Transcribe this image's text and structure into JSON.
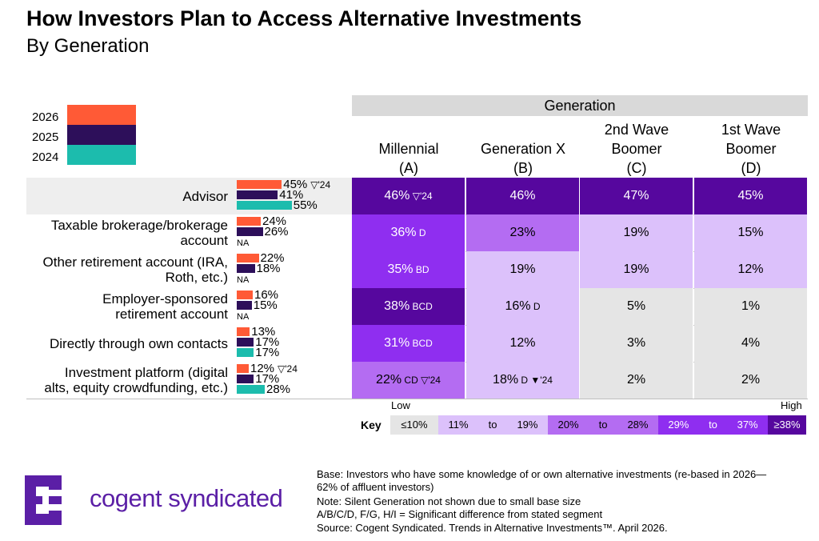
{
  "title": "How Investors Plan to Access Alternative Investments",
  "subtitle": "By Generation",
  "legend": [
    {
      "label": "2026",
      "color": "#ff5a36"
    },
    {
      "label": "2025",
      "color": "#2d0f5a"
    },
    {
      "label": "2024",
      "color": "#1cbcad"
    }
  ],
  "table_header": "Generation",
  "columns": [
    {
      "line1": "",
      "line2": "Millennial",
      "code": "(A)"
    },
    {
      "line1": "",
      "line2": "Generation X",
      "code": "(B)"
    },
    {
      "line1": "2nd Wave",
      "line2": "Boomer",
      "code": "(C)"
    },
    {
      "line1": "1st Wave",
      "line2": "Boomer",
      "code": "(D)"
    }
  ],
  "chart_data": {
    "type": "table",
    "rows": [
      {
        "label_lines": [
          "Advisor"
        ],
        "bars": [
          {
            "year": "2026",
            "value": 45,
            "text": "45%",
            "note": "▽'24"
          },
          {
            "year": "2025",
            "value": 41,
            "text": "41%"
          },
          {
            "year": "2024",
            "value": 55,
            "text": "55%"
          }
        ],
        "cells": [
          {
            "value": 46,
            "text": "46%",
            "sig": "",
            "trend": "▽'24"
          },
          {
            "value": 46,
            "text": "46%",
            "sig": "",
            "trend": ""
          },
          {
            "value": 47,
            "text": "47%",
            "sig": "",
            "trend": ""
          },
          {
            "value": 45,
            "text": "45%",
            "sig": "",
            "trend": ""
          }
        ]
      },
      {
        "label_lines": [
          "Taxable brokerage/brokerage",
          "account"
        ],
        "bars": [
          {
            "year": "2026",
            "value": 24,
            "text": "24%"
          },
          {
            "year": "2025",
            "value": 26,
            "text": "26%"
          },
          {
            "year": "2024",
            "value": null,
            "text": "NA"
          }
        ],
        "cells": [
          {
            "value": 36,
            "text": "36%",
            "sig": "D",
            "trend": ""
          },
          {
            "value": 23,
            "text": "23%",
            "sig": "",
            "trend": ""
          },
          {
            "value": 19,
            "text": "19%",
            "sig": "",
            "trend": ""
          },
          {
            "value": 15,
            "text": "15%",
            "sig": "",
            "trend": ""
          }
        ]
      },
      {
        "label_lines": [
          "Other retirement account (IRA,",
          "Roth, etc.)"
        ],
        "bars": [
          {
            "year": "2026",
            "value": 22,
            "text": "22%"
          },
          {
            "year": "2025",
            "value": 18,
            "text": "18%"
          },
          {
            "year": "2024",
            "value": null,
            "text": "NA"
          }
        ],
        "cells": [
          {
            "value": 35,
            "text": "35%",
            "sig": "BD",
            "trend": ""
          },
          {
            "value": 19,
            "text": "19%",
            "sig": "",
            "trend": ""
          },
          {
            "value": 19,
            "text": "19%",
            "sig": "",
            "trend": ""
          },
          {
            "value": 12,
            "text": "12%",
            "sig": "",
            "trend": ""
          }
        ]
      },
      {
        "label_lines": [
          "Employer-sponsored",
          "retirement account"
        ],
        "bars": [
          {
            "year": "2026",
            "value": 16,
            "text": "16%"
          },
          {
            "year": "2025",
            "value": 15,
            "text": "15%"
          },
          {
            "year": "2024",
            "value": null,
            "text": "NA"
          }
        ],
        "cells": [
          {
            "value": 38,
            "text": "38%",
            "sig": "BCD",
            "trend": ""
          },
          {
            "value": 16,
            "text": "16%",
            "sig": "D",
            "trend": ""
          },
          {
            "value": 5,
            "text": "5%",
            "sig": "",
            "trend": ""
          },
          {
            "value": 1,
            "text": "1%",
            "sig": "",
            "trend": ""
          }
        ]
      },
      {
        "label_lines": [
          "Directly through own contacts"
        ],
        "bars": [
          {
            "year": "2026",
            "value": 13,
            "text": "13%"
          },
          {
            "year": "2025",
            "value": 17,
            "text": "17%"
          },
          {
            "year": "2024",
            "value": 17,
            "text": "17%"
          }
        ],
        "cells": [
          {
            "value": 31,
            "text": "31%",
            "sig": "BCD",
            "trend": ""
          },
          {
            "value": 12,
            "text": "12%",
            "sig": "",
            "trend": ""
          },
          {
            "value": 3,
            "text": "3%",
            "sig": "",
            "trend": ""
          },
          {
            "value": 4,
            "text": "4%",
            "sig": "",
            "trend": ""
          }
        ]
      },
      {
        "label_lines": [
          "Investment platform (digital",
          "alts, equity crowdfunding, etc.)"
        ],
        "bars": [
          {
            "year": "2026",
            "value": 12,
            "text": "12%",
            "note": "▽'24"
          },
          {
            "year": "2025",
            "value": 17,
            "text": "17%"
          },
          {
            "year": "2024",
            "value": 28,
            "text": "28%"
          }
        ],
        "cells": [
          {
            "value": 22,
            "text": "22%",
            "sig": "CD",
            "trend": "▽'24"
          },
          {
            "value": 18,
            "text": "18%",
            "sig": "D",
            "trend": "▼'24"
          },
          {
            "value": 2,
            "text": "2%",
            "sig": "",
            "trend": ""
          },
          {
            "value": 2,
            "text": "2%",
            "sig": "",
            "trend": ""
          }
        ]
      }
    ]
  },
  "key": {
    "label": "Key",
    "low": "Low",
    "high": "High",
    "ranges": [
      {
        "text": "≤10%",
        "from": "",
        "to": "",
        "bg": "#e5e5e5",
        "fg": "#000000"
      },
      {
        "text": "",
        "from": "11%",
        "to": "19%",
        "bg": "#dcc1fb",
        "fg": "#000000"
      },
      {
        "text": "",
        "from": "20%",
        "to": "28%",
        "bg": "#b46cf2",
        "fg": "#000000"
      },
      {
        "text": "",
        "from": "29%",
        "to": "37%",
        "bg": "#8f2ef0",
        "fg": "#ffffff"
      },
      {
        "text": "≥38%",
        "from": "",
        "to": "",
        "bg": "#56079e",
        "fg": "#ffffff"
      }
    ],
    "range_word": "to"
  },
  "brand": {
    "name": "cogent syndicated",
    "color": "#5b1fa6"
  },
  "footnotes": [
    "Base: Investors who have some knowledge of or own alternative investments (re-based in 2026—",
    "62% of affluent investors)",
    "Note: Silent Generation not shown due to small base size",
    "A/B/C/D, F/G, H/I = Significant difference from stated segment",
    "Source: Cogent Syndicated. Trends in Alternative Investments™. April 2026."
  ]
}
